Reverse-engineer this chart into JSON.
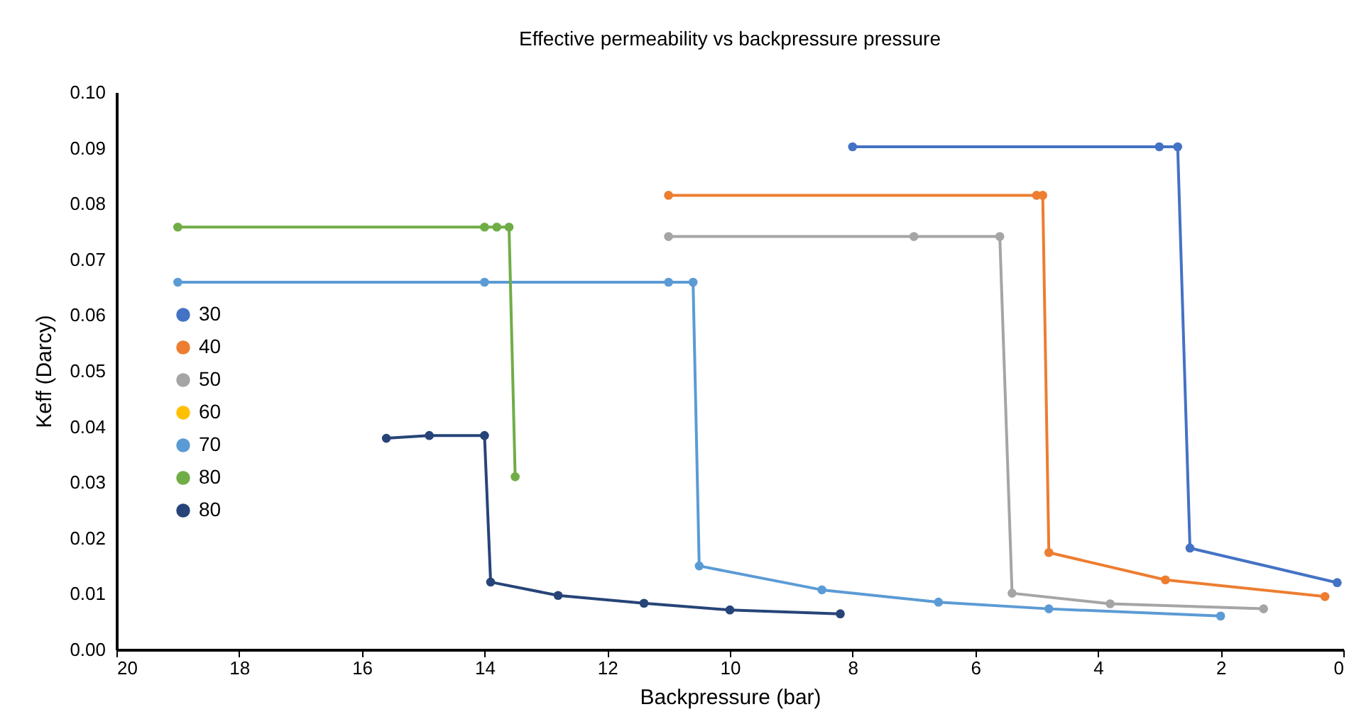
{
  "chart_data": {
    "type": "line",
    "title": "Effective permeability vs backpressure pressure",
    "xlabel": "Backpressure  (bar)",
    "ylabel": "Keff (Darcy)",
    "xlim": [
      20,
      0
    ],
    "xticks": [
      20,
      18,
      16,
      14,
      12,
      10,
      8,
      6,
      4,
      2,
      0
    ],
    "ylim": [
      0,
      0.1
    ],
    "yticks": [
      {
        "value": 0,
        "label": "0.00"
      },
      0.01,
      0.02,
      0.03,
      0.04,
      0.05,
      0.06,
      0.07,
      0.08,
      0.09,
      {
        "value": 0.1,
        "label": "0.10"
      }
    ],
    "grid": false,
    "legend": "left",
    "marker": "circle",
    "line_style": "solid",
    "series": [
      {
        "name": "30",
        "color": "#4472c4",
        "x": [
          8,
          3,
          2.7,
          2.5,
          0.1
        ],
        "values": [
          0.0902,
          0.0902,
          0.0902,
          0.0182,
          0.012
        ]
      },
      {
        "name": "40",
        "color": "#ed7d31",
        "x": [
          11,
          5,
          4.9,
          4.8,
          2.9,
          0.3
        ],
        "values": [
          0.0815,
          0.0815,
          0.0815,
          0.0174,
          0.0125,
          0.0095
        ]
      },
      {
        "name": "50",
        "color": "#a5a5a5",
        "x": [
          11,
          7,
          5.6,
          5.4,
          3.8,
          1.3
        ],
        "values": [
          0.0741,
          0.0741,
          0.0741,
          0.0101,
          0.0082,
          0.0073
        ]
      },
      {
        "name": "60",
        "color": "#ffc000"
      },
      {
        "name": "70",
        "color": "#5b9bd5",
        "x": [
          19,
          14,
          11,
          10.6,
          10.5,
          8.5,
          6.6,
          4.8,
          2
        ],
        "values": [
          0.0659,
          0.0659,
          0.0659,
          0.0659,
          0.015,
          0.0107,
          0.0085,
          0.0073,
          0.006
        ]
      },
      {
        "name": "80",
        "color": "#70ad47",
        "x": [
          19,
          14,
          13.8,
          13.6,
          13.5
        ],
        "values": [
          0.0758,
          0.0758,
          0.0758,
          0.0758,
          0.031
        ]
      },
      {
        "name": "80",
        "color": "#264478",
        "x": [
          15.6,
          14.9,
          14,
          13.9,
          12.8,
          11.4,
          10,
          8.2
        ],
        "values": [
          0.0379,
          0.0384,
          0.0384,
          0.0121,
          0.0097,
          0.0083,
          0.0071,
          0.0064
        ]
      }
    ]
  }
}
